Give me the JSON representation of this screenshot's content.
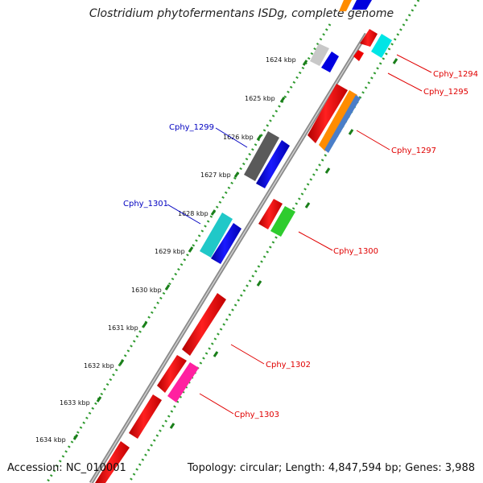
{
  "title": "Clostridium phytofermentans ISDg, complete genome",
  "footer": {
    "accession": "Accession: NC_010001",
    "topology": "Topology: circular; Length: 4,847,594 bp; Genes: 3,988"
  },
  "colors": {
    "backbone": "#7f7f7f",
    "dotted_track": "#2f9a2f",
    "tick": "#1a7f1a",
    "red_label": "#e00000",
    "blue_label": "#0000c0"
  },
  "ticks": [
    {
      "label": "1624 kbp"
    },
    {
      "label": "1625 kbp"
    },
    {
      "label": "1626 kbp"
    },
    {
      "label": "1627 kbp"
    },
    {
      "label": "1628 kbp"
    },
    {
      "label": "1629 kbp"
    },
    {
      "label": "1630 kbp"
    },
    {
      "label": "1631 kbp"
    },
    {
      "label": "1632 kbp"
    },
    {
      "label": "1633 kbp"
    },
    {
      "label": "1634 kbp"
    }
  ],
  "gene_labels": {
    "cphy_1294": "Cphy_1294",
    "cphy_1295": "Cphy_1295",
    "cphy_1297": "Cphy_1297",
    "cphy_1299": "Cphy_1299",
    "cphy_1300": "Cphy_1300",
    "cphy_1301": "Cphy_1301",
    "cphy_1302": "Cphy_1302",
    "cphy_1303": "Cphy_1303"
  }
}
